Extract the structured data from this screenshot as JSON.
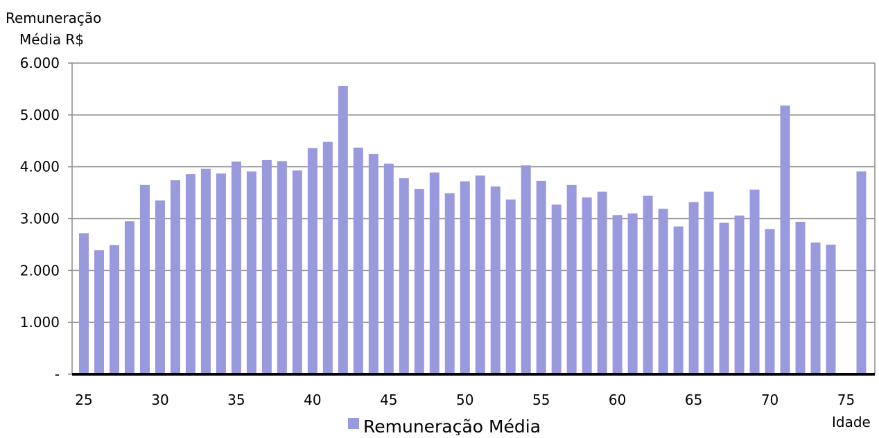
{
  "chart_data": {
    "type": "bar",
    "ylabel_line1": "Remuneração",
    "ylabel_line2": "Média R$",
    "xlabel": "Idade",
    "ylim": [
      0,
      6000
    ],
    "grid": true,
    "legend_position": "bottom-center",
    "yticks": [
      {
        "value": 0,
        "label": "-"
      },
      {
        "value": 1000,
        "label": "1.000"
      },
      {
        "value": 2000,
        "label": "2.000"
      },
      {
        "value": 3000,
        "label": "3.000"
      },
      {
        "value": 4000,
        "label": "4.000"
      },
      {
        "value": 5000,
        "label": "5.000"
      },
      {
        "value": 6000,
        "label": "6.000"
      }
    ],
    "xticks": [
      "25",
      "30",
      "35",
      "40",
      "45",
      "50",
      "55",
      "60",
      "65",
      "70",
      "75"
    ],
    "categories": [
      25,
      26,
      27,
      28,
      29,
      30,
      31,
      32,
      33,
      34,
      35,
      36,
      37,
      38,
      39,
      40,
      41,
      42,
      43,
      44,
      45,
      46,
      47,
      48,
      49,
      50,
      51,
      52,
      53,
      54,
      55,
      56,
      57,
      58,
      59,
      60,
      61,
      62,
      63,
      64,
      65,
      66,
      67,
      68,
      69,
      70,
      71,
      72,
      73,
      74,
      75,
      76
    ],
    "series": [
      {
        "name": "Remuneração Média",
        "color": "#9999dd",
        "values": [
          2720,
          2390,
          2490,
          2950,
          3650,
          3350,
          3740,
          3860,
          3960,
          3870,
          4100,
          3910,
          4130,
          4110,
          3930,
          4360,
          4480,
          5560,
          4370,
          4250,
          4060,
          3780,
          3570,
          3890,
          3490,
          3720,
          3830,
          3620,
          3370,
          4030,
          3730,
          3270,
          3650,
          3410,
          3520,
          3070,
          3100,
          3440,
          3190,
          2850,
          3320,
          3520,
          2920,
          3060,
          3560,
          2800,
          5180,
          2940,
          2540,
          2500,
          null,
          3910
        ]
      }
    ]
  }
}
